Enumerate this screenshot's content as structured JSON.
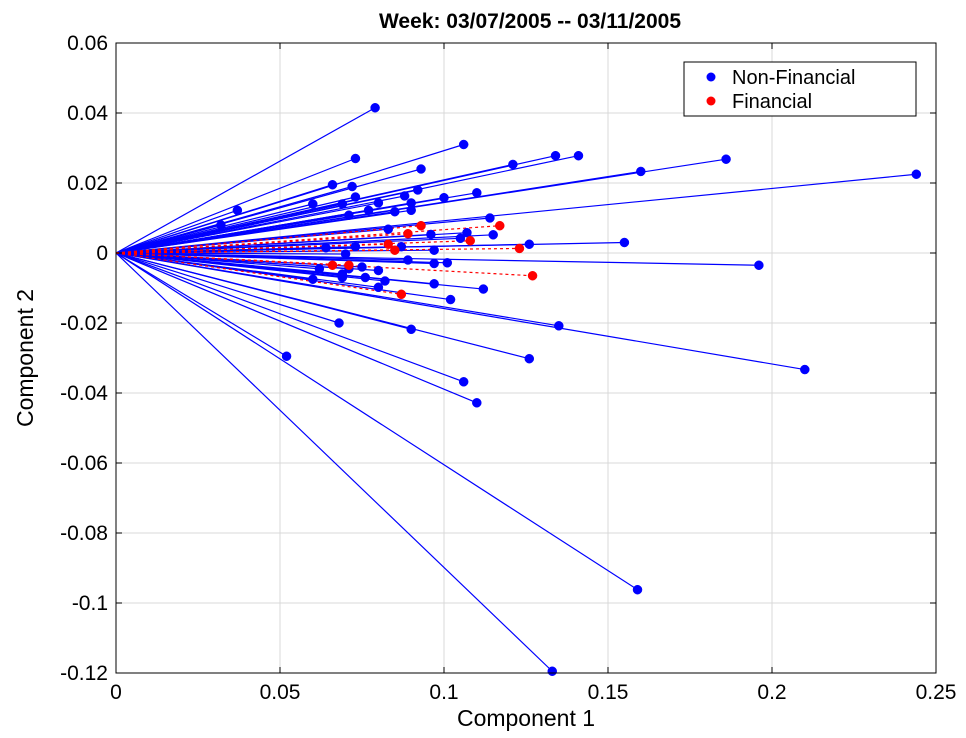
{
  "chart_data": {
    "type": "scatter",
    "title": "Week: 03/07/2005 -- 03/11/2005",
    "xlabel": "Component 1",
    "ylabel": "Component 2",
    "xlim": [
      0,
      0.25
    ],
    "ylim": [
      -0.12,
      0.06
    ],
    "x_ticks": [
      "0",
      "0.05",
      "0.1",
      "0.15",
      "0.2",
      "0.25"
    ],
    "y_ticks": [
      "0.06",
      "0.04",
      "0.02",
      "0",
      "-0.02",
      "-0.04",
      "-0.06",
      "-0.08",
      "-0.1",
      "-0.12"
    ],
    "grid": true,
    "legend_position": "top-right",
    "series": [
      {
        "name": "Non-Financial",
        "color": "#0000ff",
        "line_style": "solid",
        "marker": "filled-circle",
        "points": [
          [
            0.079,
            0.0415
          ],
          [
            0.106,
            0.031
          ],
          [
            0.073,
            0.027
          ],
          [
            0.134,
            0.0278
          ],
          [
            0.141,
            0.0278
          ],
          [
            0.121,
            0.0253
          ],
          [
            0.186,
            0.0268
          ],
          [
            0.16,
            0.0233
          ],
          [
            0.244,
            0.0225
          ],
          [
            0.093,
            0.024
          ],
          [
            0.066,
            0.0195
          ],
          [
            0.072,
            0.019
          ],
          [
            0.092,
            0.018
          ],
          [
            0.11,
            0.0172
          ],
          [
            0.088,
            0.0163
          ],
          [
            0.073,
            0.016
          ],
          [
            0.06,
            0.014
          ],
          [
            0.069,
            0.014
          ],
          [
            0.1,
            0.0158
          ],
          [
            0.08,
            0.0143
          ],
          [
            0.09,
            0.0143
          ],
          [
            0.037,
            0.0122
          ],
          [
            0.077,
            0.0122
          ],
          [
            0.085,
            0.0118
          ],
          [
            0.09,
            0.0122
          ],
          [
            0.071,
            0.0108
          ],
          [
            0.114,
            0.01
          ],
          [
            0.032,
            0.008
          ],
          [
            0.083,
            0.0068
          ],
          [
            0.096,
            0.0053
          ],
          [
            0.107,
            0.0058
          ],
          [
            0.115,
            0.0052
          ],
          [
            0.105,
            0.0042
          ],
          [
            0.126,
            0.0025
          ],
          [
            0.155,
            0.003
          ],
          [
            0.064,
            0.0015
          ],
          [
            0.073,
            0.0018
          ],
          [
            0.087,
            0.0018
          ],
          [
            0.097,
            0.0008
          ],
          [
            0.07,
            -0.0003
          ],
          [
            0.089,
            -0.002
          ],
          [
            0.097,
            -0.003
          ],
          [
            0.101,
            -0.0028
          ],
          [
            0.196,
            -0.0035
          ],
          [
            0.062,
            -0.0045
          ],
          [
            0.071,
            -0.0045
          ],
          [
            0.075,
            -0.004
          ],
          [
            0.08,
            -0.005
          ],
          [
            0.069,
            -0.006
          ],
          [
            0.06,
            -0.0075
          ],
          [
            0.069,
            -0.007
          ],
          [
            0.076,
            -0.007
          ],
          [
            0.082,
            -0.008
          ],
          [
            0.097,
            -0.0088
          ],
          [
            0.08,
            -0.0098
          ],
          [
            0.112,
            -0.0103
          ],
          [
            0.102,
            -0.0133
          ],
          [
            0.068,
            -0.02
          ],
          [
            0.135,
            -0.0208
          ],
          [
            0.09,
            -0.0218
          ],
          [
            0.052,
            -0.0295
          ],
          [
            0.126,
            -0.0302
          ],
          [
            0.21,
            -0.0333
          ],
          [
            0.106,
            -0.0368
          ],
          [
            0.11,
            -0.0428
          ],
          [
            0.159,
            -0.0962
          ],
          [
            0.133,
            -0.1195
          ]
        ]
      },
      {
        "name": "Financial",
        "color": "#ff0000",
        "line_style": "dotted",
        "marker": "filled-circle",
        "points": [
          [
            0.117,
            0.0078
          ],
          [
            0.093,
            0.0078
          ],
          [
            0.089,
            0.0055
          ],
          [
            0.108,
            0.0035
          ],
          [
            0.083,
            0.0025
          ],
          [
            0.123,
            0.0013
          ],
          [
            0.085,
            0.0008
          ],
          [
            0.066,
            -0.0035
          ],
          [
            0.071,
            -0.0035
          ],
          [
            0.127,
            -0.0065
          ],
          [
            0.087,
            -0.0118
          ]
        ]
      }
    ]
  }
}
